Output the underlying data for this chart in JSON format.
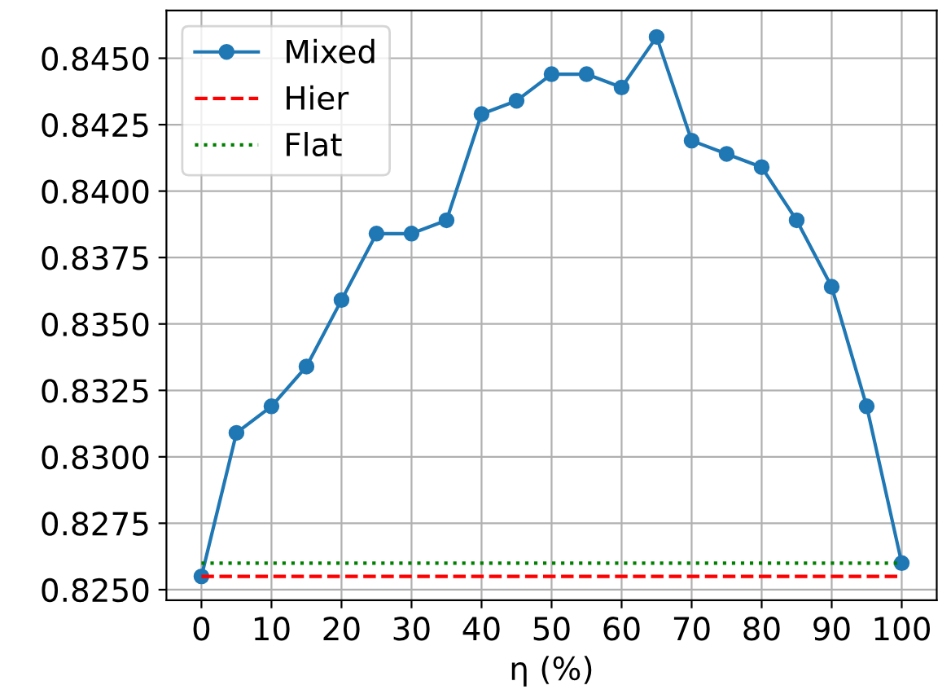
{
  "chart_data": {
    "type": "line",
    "xlabel": "η (%)",
    "x": [
      0,
      5,
      10,
      15,
      20,
      25,
      30,
      35,
      40,
      45,
      50,
      55,
      60,
      65,
      70,
      75,
      80,
      85,
      90,
      95,
      100
    ],
    "series": [
      {
        "name": "Mixed",
        "color": "#1f77b4",
        "marker": "circle",
        "line_style": "solid",
        "values": [
          0.8255,
          0.8309,
          0.8319,
          0.8334,
          0.8359,
          0.8384,
          0.8384,
          0.8389,
          0.8429,
          0.8434,
          0.8444,
          0.8444,
          0.8439,
          0.8458,
          0.8419,
          0.8414,
          0.8409,
          0.8389,
          0.8364,
          0.8319,
          0.826
        ]
      },
      {
        "name": "Hier",
        "color": "#ff0000",
        "marker": "none",
        "line_style": "dashed",
        "values": [
          0.8255,
          0.8255,
          0.8255,
          0.8255,
          0.8255,
          0.8255,
          0.8255,
          0.8255,
          0.8255,
          0.8255,
          0.8255,
          0.8255,
          0.8255,
          0.8255,
          0.8255,
          0.8255,
          0.8255,
          0.8255,
          0.8255,
          0.8255,
          0.8255
        ]
      },
      {
        "name": "Flat",
        "color": "#008000",
        "marker": "none",
        "line_style": "dotted",
        "values": [
          0.826,
          0.826,
          0.826,
          0.826,
          0.826,
          0.826,
          0.826,
          0.826,
          0.826,
          0.826,
          0.826,
          0.826,
          0.826,
          0.826,
          0.826,
          0.826,
          0.826,
          0.826,
          0.826,
          0.826,
          0.826
        ]
      }
    ],
    "xlim": [
      -5,
      105
    ],
    "ylim": [
      0.8246,
      0.8468
    ],
    "xticks": [
      0,
      10,
      20,
      30,
      40,
      50,
      60,
      70,
      80,
      90,
      100
    ],
    "yticks": [
      {
        "value": 0.825,
        "label": "0.8250"
      },
      {
        "value": 0.8275,
        "label": "0.8275"
      },
      {
        "value": 0.83,
        "label": "0.8300"
      },
      {
        "value": 0.8325,
        "label": "0.8325"
      },
      {
        "value": 0.835,
        "label": "0.8350"
      },
      {
        "value": 0.8375,
        "label": "0.8375"
      },
      {
        "value": 0.84,
        "label": "0.8400"
      },
      {
        "value": 0.8425,
        "label": "0.8425"
      },
      {
        "value": 0.845,
        "label": "0.8450"
      }
    ],
    "grid": true,
    "legend": "top left"
  }
}
